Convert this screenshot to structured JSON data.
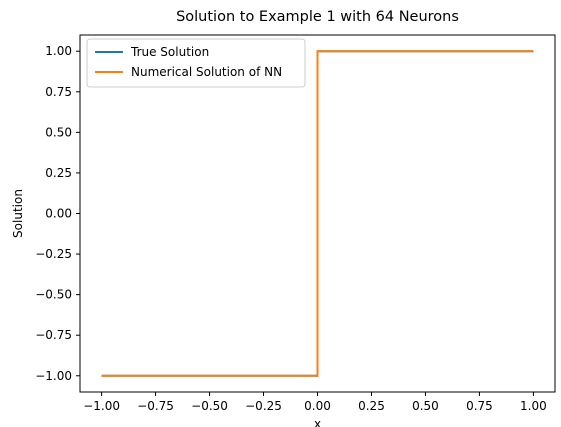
{
  "chart_data": {
    "type": "line",
    "title": "Solution to Example 1 with 64 Neurons",
    "xlabel": "x",
    "ylabel": "Solution",
    "xlim": [
      -1.1,
      1.1
    ],
    "ylim": [
      -1.1,
      1.1
    ],
    "x_ticks": [
      -1.0,
      -0.75,
      -0.5,
      -0.25,
      0.0,
      0.25,
      0.5,
      0.75,
      1.0
    ],
    "x_tick_labels": [
      "−1.00",
      "−0.75",
      "−0.50",
      "−0.25",
      "0.00",
      "0.25",
      "0.50",
      "0.75",
      "1.00"
    ],
    "y_ticks": [
      1.0,
      0.75,
      0.5,
      0.25,
      0.0,
      -0.25,
      -0.5,
      -0.75,
      -1.0
    ],
    "y_tick_labels": [
      "1.00",
      "0.75",
      "0.50",
      "0.25",
      "0.00",
      "−0.25",
      "−0.50",
      "−0.75",
      "−1.00"
    ],
    "grid": false,
    "legend_position": "top-left",
    "series": [
      {
        "name": "True Solution",
        "color": "#1f77b4",
        "x": [
          -1.0,
          0.0,
          0.0,
          1.0
        ],
        "y": [
          -1.0,
          -1.0,
          1.0,
          1.0
        ]
      },
      {
        "name": "Numerical Solution of NN",
        "color": "#ff7f0e",
        "x": [
          -1.0,
          0.0,
          0.0,
          1.0
        ],
        "y": [
          -1.0,
          -1.0,
          1.0,
          1.0
        ]
      }
    ]
  }
}
